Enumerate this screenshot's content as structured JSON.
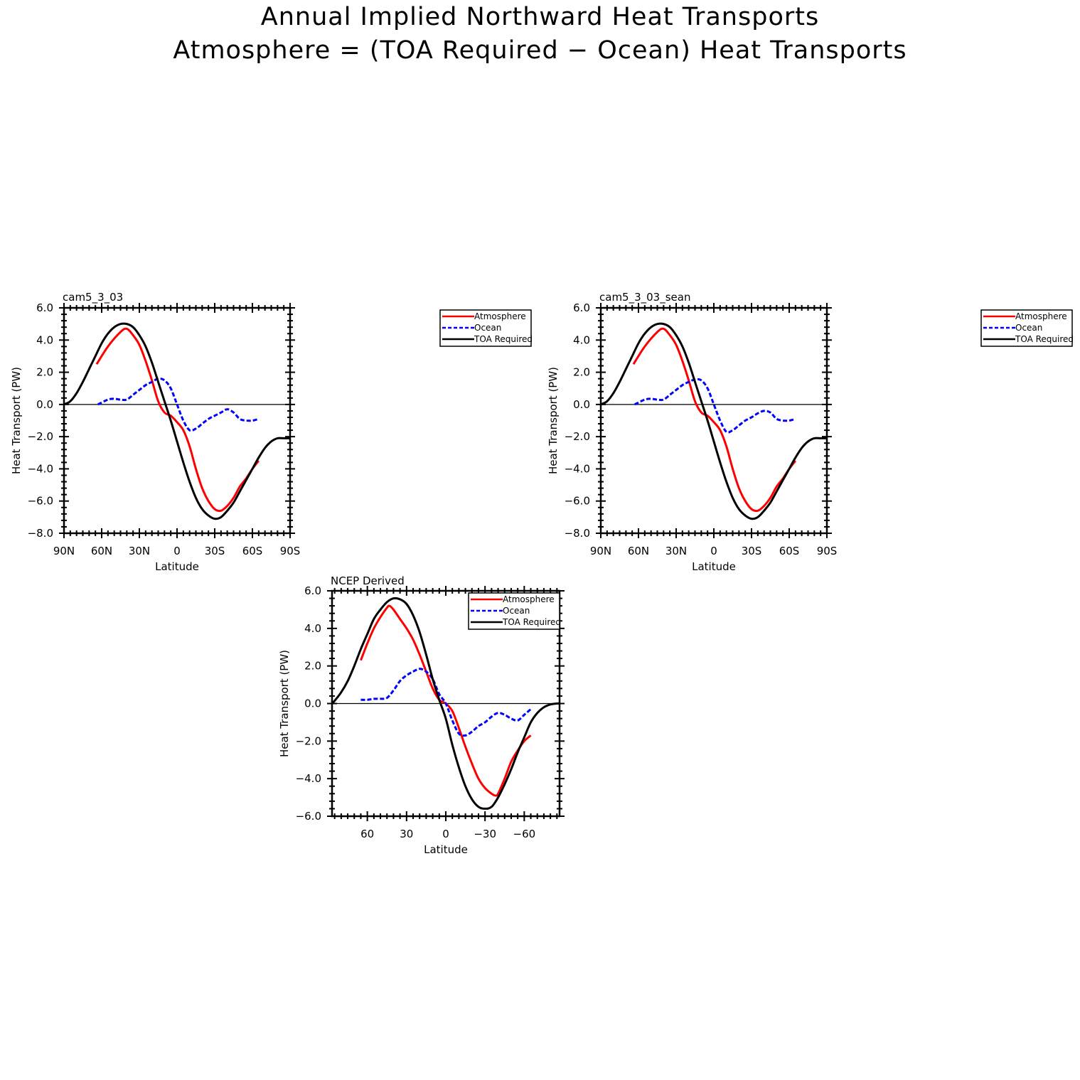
{
  "page": {
    "title_line_1": "Annual Implied Northward Heat Transports",
    "title_line_2": "Atmosphere = (TOA Required − Ocean) Heat Transports"
  },
  "colors": {
    "atmosphere": "#ff0000",
    "ocean": "#0000ff",
    "toa": "#000000"
  },
  "chart_data": [
    {
      "type": "line",
      "title": "cam5_3_03",
      "xlabel": "Latitude",
      "ylabel": "Heat Transport (PW)",
      "xlim": [
        90,
        -90
      ],
      "ylim": [
        -8,
        6
      ],
      "x_ticks": [
        90,
        60,
        30,
        0,
        -30,
        -60,
        -90
      ],
      "x_tick_labels": [
        "90N",
        "60N",
        "30N",
        "0",
        "30S",
        "60S",
        "90S"
      ],
      "y_ticks": [
        6,
        4,
        2,
        0,
        -2,
        -4,
        -6,
        -8
      ],
      "y_tick_labels": [
        "6.0",
        "4.0",
        "2.0",
        "0.0",
        "−2.0",
        "−4.0",
        "−6.0",
        "−8.0"
      ],
      "zero_line": true,
      "legend": {
        "placement": "outside-right",
        "entries": [
          "Atmosphere",
          "Ocean",
          "TOA Required"
        ]
      },
      "series": [
        {
          "name": "Atmosphere",
          "style": "solid",
          "color": "#ff0000",
          "x": [
            64,
            55,
            45,
            40,
            35,
            30,
            25,
            20,
            15,
            10,
            5,
            0,
            -5,
            -10,
            -15,
            -20,
            -25,
            -30,
            -35,
            -40,
            -45,
            -50,
            -55,
            -60,
            -65
          ],
          "y": [
            2.5,
            3.6,
            4.5,
            4.7,
            4.3,
            3.7,
            2.7,
            1.5,
            0.2,
            -0.5,
            -0.7,
            -1.1,
            -1.6,
            -2.6,
            -4.0,
            -5.2,
            -6.0,
            -6.5,
            -6.6,
            -6.3,
            -5.8,
            -5.1,
            -4.6,
            -4.0,
            -3.5
          ]
        },
        {
          "name": "Ocean",
          "style": "dashed",
          "color": "#0000ff",
          "x": [
            63,
            55,
            50,
            45,
            40,
            35,
            30,
            25,
            20,
            15,
            10,
            5,
            0,
            -5,
            -10,
            -15,
            -20,
            -25,
            -30,
            -35,
            -40,
            -45,
            -50,
            -55,
            -60,
            -65
          ],
          "y": [
            0.0,
            0.3,
            0.35,
            0.3,
            0.3,
            0.6,
            0.9,
            1.2,
            1.4,
            1.6,
            1.5,
            1.0,
            0.0,
            -1.0,
            -1.6,
            -1.5,
            -1.2,
            -0.9,
            -0.7,
            -0.5,
            -0.3,
            -0.5,
            -0.9,
            -1.0,
            -1.0,
            -0.9
          ]
        },
        {
          "name": "TOA Required",
          "style": "solid",
          "color": "#000000",
          "x": [
            90,
            85,
            80,
            75,
            70,
            65,
            60,
            55,
            50,
            45,
            40,
            35,
            30,
            25,
            20,
            15,
            10,
            5,
            0,
            -5,
            -10,
            -15,
            -20,
            -25,
            -30,
            -35,
            -40,
            -45,
            -50,
            -55,
            -60,
            -65,
            -70,
            -75,
            -80,
            -85,
            -90
          ],
          "y": [
            0.0,
            0.2,
            0.7,
            1.4,
            2.2,
            3.0,
            3.8,
            4.4,
            4.8,
            5.0,
            5.0,
            4.8,
            4.3,
            3.6,
            2.6,
            1.4,
            0.2,
            -1.0,
            -2.3,
            -3.6,
            -4.8,
            -5.8,
            -6.5,
            -6.9,
            -7.1,
            -7.0,
            -6.6,
            -6.1,
            -5.4,
            -4.7,
            -4.0,
            -3.3,
            -2.7,
            -2.3,
            -2.1,
            -2.1,
            -2.1
          ]
        }
      ]
    },
    {
      "type": "line",
      "title": "cam5_3_03_sean",
      "xlabel": "Latitude",
      "ylabel": "Heat Transport (PW)",
      "xlim": [
        90,
        -90
      ],
      "ylim": [
        -8,
        6
      ],
      "x_ticks": [
        90,
        60,
        30,
        0,
        -30,
        -60,
        -90
      ],
      "x_tick_labels": [
        "90N",
        "60N",
        "30N",
        "0",
        "30S",
        "60S",
        "90S"
      ],
      "y_ticks": [
        6,
        4,
        2,
        0,
        -2,
        -4,
        -6,
        -8
      ],
      "y_tick_labels": [
        "6.0",
        "4.0",
        "2.0",
        "0.0",
        "−2.0",
        "−4.0",
        "−6.0",
        "−8.0"
      ],
      "zero_line": true,
      "legend": {
        "placement": "outside-right",
        "entries": [
          "Atmosphere",
          "Ocean",
          "TOA Required"
        ]
      },
      "series": [
        {
          "name": "Atmosphere",
          "style": "solid",
          "color": "#ff0000",
          "x": [
            64,
            55,
            45,
            40,
            35,
            30,
            25,
            20,
            15,
            10,
            5,
            0,
            -5,
            -10,
            -15,
            -20,
            -25,
            -30,
            -35,
            -40,
            -45,
            -50,
            -55,
            -60,
            -65
          ],
          "y": [
            2.5,
            3.6,
            4.5,
            4.7,
            4.3,
            3.7,
            2.7,
            1.5,
            0.2,
            -0.5,
            -0.7,
            -1.1,
            -1.6,
            -2.6,
            -4.0,
            -5.2,
            -6.0,
            -6.5,
            -6.6,
            -6.3,
            -5.8,
            -5.1,
            -4.6,
            -4.0,
            -3.5
          ]
        },
        {
          "name": "Ocean",
          "style": "dashed",
          "color": "#0000ff",
          "x": [
            63,
            55,
            50,
            45,
            40,
            35,
            30,
            25,
            20,
            15,
            10,
            5,
            0,
            -5,
            -10,
            -15,
            -20,
            -25,
            -30,
            -35,
            -40,
            -45,
            -50,
            -55,
            -60,
            -65
          ],
          "y": [
            0.0,
            0.3,
            0.35,
            0.3,
            0.3,
            0.6,
            0.9,
            1.2,
            1.4,
            1.55,
            1.5,
            1.0,
            0.0,
            -1.0,
            -1.7,
            -1.6,
            -1.3,
            -1.0,
            -0.8,
            -0.55,
            -0.4,
            -0.5,
            -0.9,
            -1.0,
            -1.0,
            -0.9
          ]
        },
        {
          "name": "TOA Required",
          "style": "solid",
          "color": "#000000",
          "x": [
            90,
            85,
            80,
            75,
            70,
            65,
            60,
            55,
            50,
            45,
            40,
            35,
            30,
            25,
            20,
            15,
            10,
            5,
            0,
            -5,
            -10,
            -15,
            -20,
            -25,
            -30,
            -35,
            -40,
            -45,
            -50,
            -55,
            -60,
            -65,
            -70,
            -75,
            -80,
            -85,
            -90
          ],
          "y": [
            0.0,
            0.2,
            0.7,
            1.4,
            2.2,
            3.0,
            3.8,
            4.4,
            4.8,
            5.0,
            5.0,
            4.8,
            4.3,
            3.6,
            2.6,
            1.4,
            0.2,
            -1.0,
            -2.3,
            -3.6,
            -4.8,
            -5.8,
            -6.5,
            -6.9,
            -7.1,
            -7.0,
            -6.6,
            -6.1,
            -5.4,
            -4.7,
            -4.0,
            -3.3,
            -2.7,
            -2.3,
            -2.1,
            -2.1,
            -2.1
          ]
        }
      ]
    },
    {
      "type": "line",
      "title": "NCEP Derived",
      "xlabel": "Latitude",
      "ylabel": "Heat Transport (PW)",
      "xlim": [
        87,
        -87
      ],
      "ylim": [
        -6,
        6
      ],
      "x_ticks": [
        60,
        30,
        0,
        -30,
        -60
      ],
      "x_tick_labels": [
        "60",
        "30",
        "0",
        "−30",
        "−60"
      ],
      "y_ticks": [
        6,
        4,
        2,
        0,
        -2,
        -4,
        -6
      ],
      "y_tick_labels": [
        "6.0",
        "4.0",
        "2.0",
        "0.0",
        "−2.0",
        "−4.0",
        "−6.0"
      ],
      "zero_line": true,
      "legend": {
        "placement": "top-right",
        "entries": [
          "Atmosphere",
          "Ocean",
          "TOA Required"
        ]
      },
      "series": [
        {
          "name": "Atmosphere",
          "style": "solid",
          "color": "#ff0000",
          "x": [
            65,
            60,
            55,
            50,
            45,
            43,
            40,
            35,
            30,
            25,
            20,
            15,
            10,
            5,
            0,
            -5,
            -10,
            -15,
            -20,
            -25,
            -30,
            -35,
            -38,
            -40,
            -45,
            -50,
            -55,
            -60,
            -65
          ],
          "y": [
            2.3,
            3.2,
            4.0,
            4.6,
            5.1,
            5.2,
            5.0,
            4.5,
            4.0,
            3.4,
            2.6,
            1.7,
            0.8,
            0.2,
            0.0,
            -0.4,
            -1.3,
            -2.3,
            -3.2,
            -4.0,
            -4.5,
            -4.8,
            -4.9,
            -4.8,
            -4.0,
            -3.1,
            -2.5,
            -2.0,
            -1.7
          ]
        },
        {
          "name": "Ocean",
          "style": "dashed",
          "color": "#0000ff",
          "x": [
            65,
            60,
            55,
            50,
            45,
            40,
            35,
            30,
            25,
            20,
            15,
            10,
            5,
            0,
            -5,
            -10,
            -15,
            -20,
            -25,
            -30,
            -35,
            -40,
            -45,
            -50,
            -55,
            -60,
            -65
          ],
          "y": [
            0.2,
            0.2,
            0.25,
            0.25,
            0.3,
            0.7,
            1.2,
            1.5,
            1.7,
            1.85,
            1.7,
            1.3,
            0.5,
            0.0,
            -0.9,
            -1.6,
            -1.7,
            -1.5,
            -1.2,
            -1.0,
            -0.7,
            -0.5,
            -0.6,
            -0.8,
            -0.9,
            -0.6,
            -0.3
          ]
        },
        {
          "name": "TOA Required",
          "style": "solid",
          "color": "#000000",
          "x": [
            87,
            85,
            80,
            75,
            70,
            65,
            60,
            55,
            50,
            45,
            40,
            35,
            30,
            25,
            20,
            15,
            10,
            5,
            0,
            -5,
            -10,
            -15,
            -20,
            -25,
            -30,
            -35,
            -40,
            -45,
            -50,
            -55,
            -60,
            -65,
            -70,
            -75,
            -80,
            -85,
            -87
          ],
          "y": [
            0.0,
            0.15,
            0.6,
            1.2,
            2.0,
            2.9,
            3.7,
            4.5,
            5.0,
            5.4,
            5.6,
            5.55,
            5.3,
            4.7,
            3.8,
            2.6,
            1.3,
            0.2,
            -0.8,
            -2.2,
            -3.4,
            -4.4,
            -5.1,
            -5.5,
            -5.6,
            -5.5,
            -5.0,
            -4.3,
            -3.5,
            -2.6,
            -1.8,
            -1.0,
            -0.5,
            -0.2,
            -0.05,
            0.0,
            0.0
          ]
        }
      ]
    }
  ]
}
